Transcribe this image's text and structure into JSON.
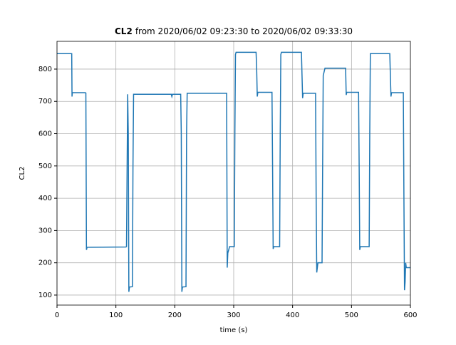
{
  "chart_data": {
    "type": "line",
    "title": {
      "bold": "CL2",
      "text": "from 2020/06/02 09:23:30 to 2020/06/02 09:33:30"
    },
    "xlabel": "time (s)",
    "ylabel": "CL2",
    "x": [
      0,
      25,
      25.5,
      26,
      48,
      49,
      50,
      51,
      117,
      118,
      120,
      121,
      122,
      123,
      128,
      129,
      130,
      194,
      195,
      196,
      210,
      211,
      212,
      213,
      219,
      220,
      221,
      288,
      289,
      290,
      293,
      301,
      302,
      303,
      304,
      338,
      339,
      340,
      341,
      365,
      366,
      367,
      368,
      378,
      379,
      380,
      381,
      415,
      416,
      417,
      418,
      439,
      440,
      441,
      443,
      450,
      451,
      452,
      455,
      490,
      491,
      492,
      512,
      513,
      514,
      515,
      530,
      531,
      532,
      565,
      566,
      567,
      568,
      588,
      589,
      590,
      591,
      592,
      593,
      594,
      600
    ],
    "series": [
      {
        "name": "CL2",
        "color": "#1f77b4",
        "values": [
          848,
          848,
          715,
          727,
          727,
          726,
          240,
          248,
          249,
          250,
          722,
          600,
          110,
          125,
          126,
          500,
          722,
          722,
          715,
          722,
          722,
          600,
          110,
          125,
          126,
          600,
          725,
          725,
          185,
          230,
          250,
          250,
          600,
          845,
          852,
          852,
          800,
          715,
          728,
          728,
          500,
          243,
          250,
          250,
          600,
          845,
          852,
          852,
          780,
          710,
          725,
          725,
          400,
          170,
          200,
          200,
          500,
          780,
          803,
          803,
          720,
          728,
          728,
          500,
          240,
          250,
          250,
          600,
          848,
          848,
          780,
          715,
          727,
          727,
          400,
          115,
          140,
          200,
          185,
          185,
          185
        ]
      }
    ],
    "xlim": [
      0,
      600
    ],
    "ylim": [
      69,
      886
    ],
    "xticks": [
      0,
      100,
      200,
      300,
      400,
      500,
      600
    ],
    "yticks": [
      100,
      200,
      300,
      400,
      500,
      600,
      700,
      800
    ],
    "grid": true
  }
}
